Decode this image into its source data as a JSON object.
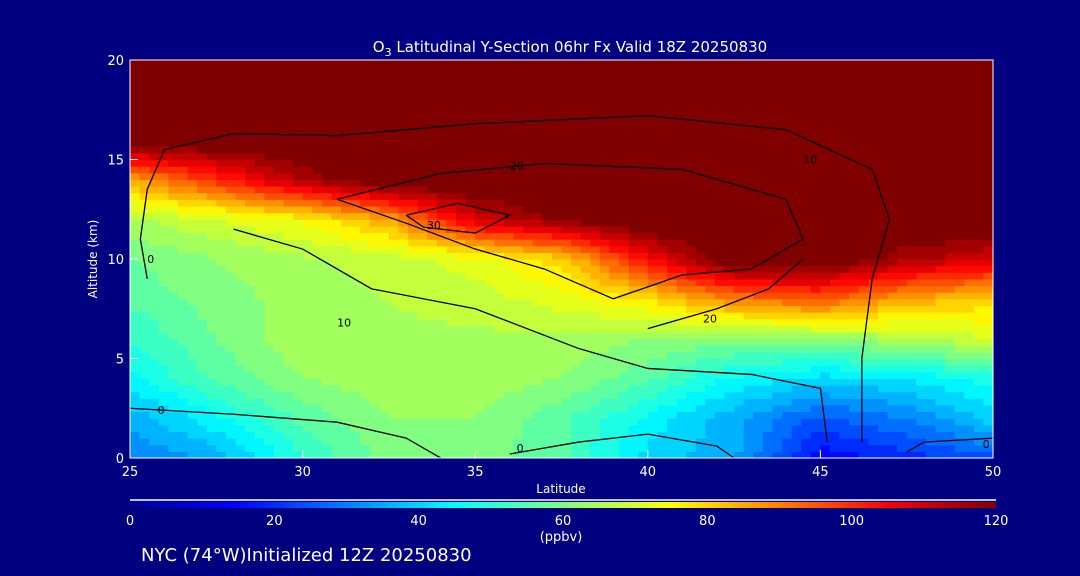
{
  "chart_data": {
    "type": "heatmap",
    "title": "O3 Latitudinal Y-Section 06hr  Fx Valid 18Z 20250830",
    "title_main": "O",
    "title_sub": "3",
    "title_rest": " Latitudinal Y-Section 06hr  Fx Valid 18Z 20250830",
    "xlabel": "Latitude",
    "ylabel": "Altitude (km)",
    "xlim": [
      25,
      50
    ],
    "ylim": [
      0,
      20
    ],
    "xticks": [
      "25",
      "30",
      "35",
      "40",
      "45",
      "50"
    ],
    "yticks": [
      "0",
      "5",
      "10",
      "15",
      "20"
    ],
    "colorbar": {
      "ticks": [
        "0",
        "20",
        "40",
        "60",
        "80",
        "100",
        "120"
      ],
      "range": [
        0,
        120
      ],
      "units": "(ppbv)"
    },
    "lat": [
      25,
      27.5,
      30,
      32.5,
      35,
      37.5,
      40,
      42.5,
      45,
      47.5,
      50
    ],
    "alt": [
      0,
      2,
      4,
      6,
      8,
      10,
      12,
      14,
      16,
      18,
      20
    ],
    "values": [
      [
        30,
        35,
        50,
        60,
        60,
        55,
        40,
        35,
        15,
        20,
        25
      ],
      [
        35,
        45,
        55,
        62,
        62,
        55,
        45,
        35,
        25,
        30,
        40
      ],
      [
        45,
        55,
        62,
        65,
        65,
        62,
        55,
        45,
        40,
        42,
        48
      ],
      [
        50,
        58,
        65,
        65,
        65,
        65,
        62,
        60,
        62,
        65,
        70
      ],
      [
        55,
        60,
        64,
        66,
        68,
        72,
        78,
        90,
        95,
        85,
        80
      ],
      [
        58,
        62,
        65,
        68,
        72,
        80,
        105,
        125,
        125,
        115,
        110
      ],
      [
        65,
        70,
        75,
        85,
        110,
        120,
        125,
        125,
        125,
        125,
        125
      ],
      [
        85,
        100,
        115,
        125,
        125,
        125,
        125,
        125,
        125,
        125,
        125
      ],
      [
        125,
        125,
        125,
        125,
        125,
        125,
        125,
        125,
        125,
        125,
        125
      ],
      [
        125,
        125,
        125,
        125,
        125,
        125,
        125,
        125,
        125,
        125,
        125
      ],
      [
        125,
        125,
        125,
        125,
        125,
        125,
        125,
        125,
        125,
        125,
        125
      ]
    ],
    "contours": [
      {
        "label": "0",
        "points": [
          [
            25,
            2.5
          ],
          [
            28,
            2.2
          ],
          [
            31,
            1.8
          ],
          [
            33,
            1
          ],
          [
            34,
            0
          ]
        ],
        "label_at": [
          25.8,
          2.4
        ]
      },
      {
        "label": "0",
        "points": [
          [
            25.5,
            9
          ],
          [
            25.3,
            11
          ],
          [
            25.5,
            13.5
          ],
          [
            26,
            15.5
          ]
        ],
        "label_at": [
          25.5,
          10
        ]
      },
      {
        "label": "10",
        "points": [
          [
            26,
            15.5
          ],
          [
            28,
            16.3
          ],
          [
            31,
            16.2
          ],
          [
            35,
            16.8
          ],
          [
            40,
            17.2
          ],
          [
            44,
            16.5
          ],
          [
            46.5,
            14.5
          ],
          [
            47,
            12
          ],
          [
            46.5,
            9
          ],
          [
            46.2,
            5
          ],
          [
            46.2,
            0.8
          ]
        ],
        "label_at": [
          44.5,
          15
        ]
      },
      {
        "label": "10",
        "points": [
          [
            28,
            11.5
          ],
          [
            30,
            10.5
          ],
          [
            32,
            8.5
          ],
          [
            35,
            7.5
          ],
          [
            38,
            5.5
          ],
          [
            40,
            4.5
          ],
          [
            43,
            4.2
          ],
          [
            45,
            3.5
          ],
          [
            45.2,
            0.8
          ]
        ],
        "label_at": [
          31,
          6.8
        ]
      },
      {
        "label": "20",
        "points": [
          [
            31,
            13
          ],
          [
            34,
            14.3
          ],
          [
            37,
            14.8
          ],
          [
            41,
            14.5
          ],
          [
            44,
            13
          ],
          [
            44.5,
            11
          ],
          [
            43,
            9.5
          ],
          [
            41,
            9.2
          ],
          [
            39,
            8
          ],
          [
            37,
            9.5
          ],
          [
            35,
            10.5
          ],
          [
            33,
            11.8
          ],
          [
            31,
            13
          ]
        ],
        "label_at": [
          36,
          14.7
        ]
      },
      {
        "label": "20",
        "points": [
          [
            40,
            6.5
          ],
          [
            42,
            7.5
          ],
          [
            43.5,
            8.5
          ],
          [
            44.5,
            10
          ]
        ],
        "label_at": [
          41.6,
          7
        ]
      },
      {
        "label": "30",
        "points": [
          [
            33,
            12.2
          ],
          [
            34.5,
            12.8
          ],
          [
            36,
            12.2
          ],
          [
            35,
            11.3
          ],
          [
            33.5,
            11.6
          ],
          [
            33,
            12.2
          ]
        ],
        "label_at": [
          33.6,
          11.7
        ]
      },
      {
        "label": "0",
        "points": [
          [
            36,
            0.2
          ],
          [
            38,
            0.8
          ],
          [
            40,
            1.2
          ],
          [
            42,
            0.6
          ],
          [
            42.5,
            0
          ]
        ],
        "label_at": [
          36.2,
          0.5
        ]
      },
      {
        "label": "0",
        "points": [
          [
            47.5,
            0.3
          ],
          [
            48,
            0.8
          ],
          [
            50,
            1
          ]
        ],
        "label_at": [
          49.7,
          0.7
        ]
      }
    ]
  },
  "footer": {
    "location": "NYC (74°W)Initialized 12Z 20250830"
  }
}
